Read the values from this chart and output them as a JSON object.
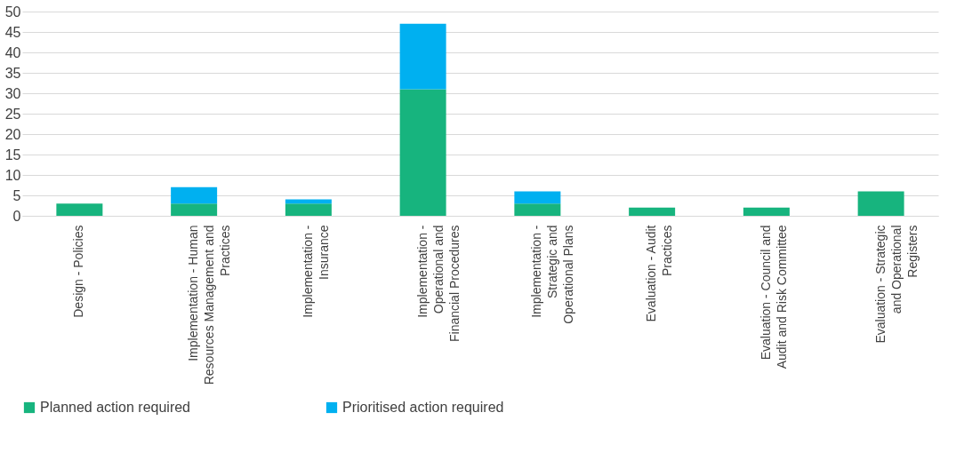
{
  "chart_data": {
    "type": "bar",
    "stacked": true,
    "categories": [
      "Design - Policies",
      "Implementation - Human Resources Management and Practices",
      "Implementation - Insurance",
      "Implementation - Operational and Financial Procedures",
      "Implementation - Strategic and Operational Plans",
      "Evaluation - Audit Practices",
      "Evaluation - Council and Audit and Risk Committee",
      "Evaluation - Strategic and Operational Registers"
    ],
    "series": [
      {
        "name": "Planned action required",
        "color": "#17b47e",
        "values": [
          3,
          3,
          3,
          31,
          3,
          2,
          2,
          6
        ]
      },
      {
        "name": "Prioritised action required",
        "color": "#00b0f0",
        "values": [
          0,
          4,
          1,
          16,
          3,
          0,
          0,
          0
        ]
      }
    ],
    "ylim": [
      0,
      50
    ],
    "yticks": [
      0,
      5,
      10,
      15,
      20,
      25,
      30,
      35,
      40,
      45,
      50
    ],
    "grid": "y",
    "legend": "bottom"
  }
}
